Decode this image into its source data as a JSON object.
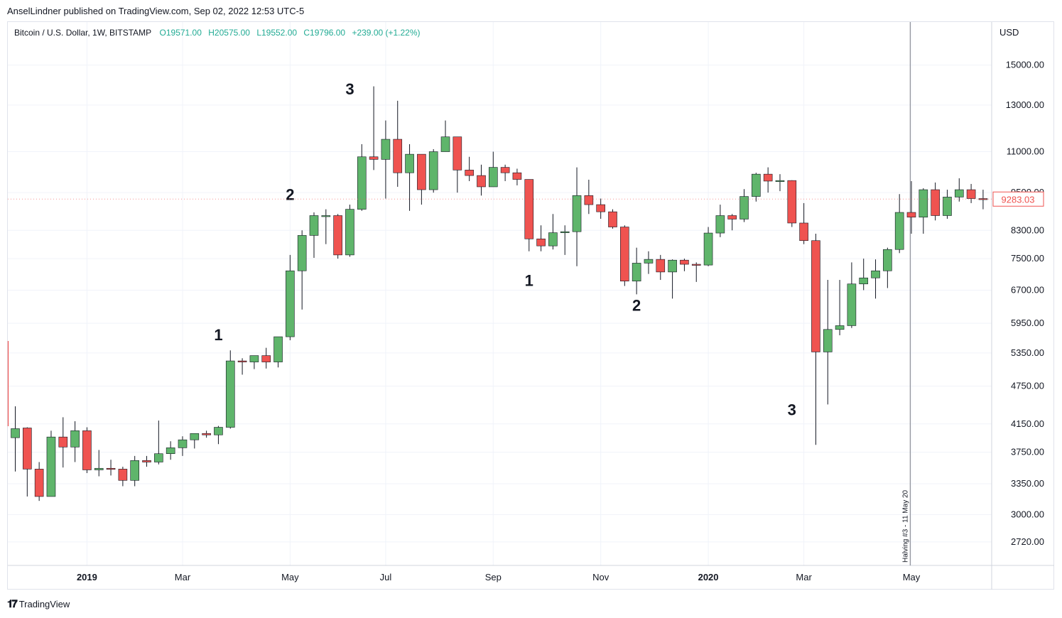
{
  "publisher_line": "AnselLindner published on TradingView.com, Sep 02, 2022 12:53 UTC-5",
  "brand": {
    "logo": "𝟏𝟕",
    "name": "TradingView"
  },
  "colors": {
    "up": "#5fb56b",
    "down": "#ef5350",
    "wick": "#131722",
    "grid": "#f0f3fa",
    "price_tag": "#ef5350"
  },
  "legend": {
    "symbol": "Bitcoin / U.S. Dollar, 1W, BITSTAMP",
    "open": "O19571.00",
    "high": "H20575.00",
    "low": "L19552.00",
    "close": "C19796.00",
    "change": "+239.00 (+1.22%)"
  },
  "chart_data": {
    "type": "candlestick",
    "title": "Bitcoin / U.S. Dollar, 1W, BITSTAMP",
    "ylabel": "USD",
    "y_scale": "log",
    "ylim": [
      2500,
      17500
    ],
    "y_ticks": [
      "15000.00",
      "13000.00",
      "11000.00",
      "9500.00",
      "8300.00",
      "7500.00",
      "6700.00",
      "5950.00",
      "5350.00",
      "4750.00",
      "4150.00",
      "3750.00",
      "3350.00",
      "3000.00",
      "2720.00"
    ],
    "x_ticks": [
      {
        "label": "2019",
        "week": 6,
        "bold": true
      },
      {
        "label": "Mar",
        "week": 14
      },
      {
        "label": "May",
        "week": 23
      },
      {
        "label": "Jul",
        "week": 31
      },
      {
        "label": "Sep",
        "week": 40
      },
      {
        "label": "Nov",
        "week": 49
      },
      {
        "label": "2020",
        "week": 58,
        "bold": true
      },
      {
        "label": "Mar",
        "week": 66
      },
      {
        "label": "May",
        "week": 75
      }
    ],
    "first_week": "2018-11-12",
    "candles": [
      [
        3950,
        4420,
        3500,
        4080
      ],
      [
        4090,
        4100,
        3200,
        3530
      ],
      [
        3530,
        3620,
        3150,
        3200
      ],
      [
        3200,
        4050,
        3210,
        3960
      ],
      [
        3960,
        4250,
        3550,
        3820
      ],
      [
        3820,
        4190,
        3620,
        4050
      ],
      [
        4050,
        4100,
        3480,
        3520
      ],
      [
        3520,
        3780,
        3440,
        3540
      ],
      [
        3540,
        3650,
        3450,
        3530
      ],
      [
        3530,
        3560,
        3320,
        3390
      ],
      [
        3390,
        3700,
        3320,
        3640
      ],
      [
        3640,
        3700,
        3560,
        3620
      ],
      [
        3620,
        4200,
        3590,
        3730
      ],
      [
        3730,
        3900,
        3650,
        3810
      ],
      [
        3810,
        3970,
        3700,
        3920
      ],
      [
        3920,
        4000,
        3800,
        4010
      ],
      [
        4010,
        4050,
        3950,
        3990
      ],
      [
        3990,
        4120,
        3860,
        4100
      ],
      [
        4100,
        5400,
        4080,
        5200
      ],
      [
        5200,
        5250,
        4950,
        5180
      ],
      [
        5180,
        5300,
        5050,
        5300
      ],
      [
        5300,
        5450,
        5060,
        5180
      ],
      [
        5180,
        5650,
        5080,
        5670
      ],
      [
        5670,
        7600,
        5600,
        7180
      ],
      [
        7180,
        8300,
        6250,
        8150
      ],
      [
        8150,
        8850,
        7520,
        8750
      ],
      [
        8750,
        8950,
        7900,
        8750
      ],
      [
        8750,
        8800,
        7500,
        7600
      ],
      [
        7600,
        9100,
        7550,
        8950
      ],
      [
        8950,
        11300,
        8900,
        10800
      ],
      [
        10800,
        13900,
        10300,
        10700
      ],
      [
        10700,
        12300,
        9300,
        11500
      ],
      [
        11500,
        13200,
        9700,
        10200
      ],
      [
        10200,
        11300,
        8900,
        10900
      ],
      [
        10900,
        10900,
        9100,
        9600
      ],
      [
        9600,
        11100,
        9500,
        11000
      ],
      [
        11000,
        12300,
        11000,
        11600
      ],
      [
        11600,
        11600,
        9500,
        10300
      ],
      [
        10300,
        10800,
        9900,
        10100
      ],
      [
        10100,
        10500,
        9400,
        9700
      ],
      [
        9700,
        11000,
        9700,
        10400
      ],
      [
        10400,
        10500,
        9900,
        10200
      ],
      [
        10200,
        10350,
        9750,
        9960
      ],
      [
        9960,
        9960,
        7700,
        8050
      ],
      [
        8050,
        8450,
        7700,
        7850
      ],
      [
        7850,
        8800,
        7750,
        8230
      ],
      [
        8230,
        8450,
        7600,
        8260
      ],
      [
        8260,
        10400,
        7300,
        9400
      ],
      [
        9400,
        9950,
        8800,
        9100
      ],
      [
        9100,
        9300,
        8650,
        8870
      ],
      [
        8870,
        8950,
        8350,
        8400
      ],
      [
        8400,
        8450,
        6800,
        6920
      ],
      [
        6920,
        7800,
        6600,
        7380
      ],
      [
        7380,
        7700,
        7100,
        7480
      ],
      [
        7480,
        7600,
        6950,
        7150
      ],
      [
        7150,
        7480,
        6500,
        7460
      ],
      [
        7460,
        7500,
        7170,
        7350
      ],
      [
        7350,
        7400,
        6900,
        7330
      ],
      [
        7330,
        8400,
        7300,
        8220
      ],
      [
        8220,
        9100,
        8100,
        8750
      ],
      [
        8750,
        8800,
        8300,
        8640
      ],
      [
        8640,
        9620,
        8550,
        9370
      ],
      [
        9370,
        10200,
        9200,
        10150
      ],
      [
        10150,
        10400,
        9500,
        9900
      ],
      [
        9900,
        10150,
        9550,
        9920
      ],
      [
        9920,
        9930,
        8400,
        8520
      ],
      [
        8520,
        9150,
        7900,
        8000
      ],
      [
        8000,
        8200,
        3850,
        5370
      ],
      [
        5370,
        6950,
        4450,
        5820
      ],
      [
        5820,
        6950,
        5700,
        5900
      ],
      [
        5900,
        7400,
        5850,
        6850
      ],
      [
        6850,
        7500,
        6700,
        7000
      ],
      [
        7000,
        7480,
        6500,
        7180
      ],
      [
        7180,
        7800,
        6750,
        7750
      ],
      [
        7750,
        9450,
        7650,
        8850
      ],
      [
        8850,
        9900,
        8200,
        8700
      ],
      [
        8700,
        9650,
        8200,
        9600
      ],
      [
        9600,
        9850,
        8600,
        8750
      ],
      [
        8750,
        9600,
        8650,
        9350
      ],
      [
        9350,
        10000,
        9200,
        9600
      ],
      [
        9600,
        9800,
        9150,
        9300
      ],
      [
        9300,
        9600,
        8950,
        9283
      ]
    ],
    "last_price": "9283.03",
    "wave_labels": [
      {
        "text": "1",
        "week": 17,
        "price": 5600
      },
      {
        "text": "2",
        "week": 23,
        "price": 9250
      },
      {
        "text": "3",
        "week": 28,
        "price": 13500
      },
      {
        "text": "1",
        "week": 43,
        "price": 6800
      },
      {
        "text": "2",
        "week": 52,
        "price": 6220
      },
      {
        "text": "3",
        "week": 65,
        "price": 4280
      }
    ],
    "event_line": {
      "label": "Halving #3 - 11 May 20",
      "week": 74.9
    }
  }
}
